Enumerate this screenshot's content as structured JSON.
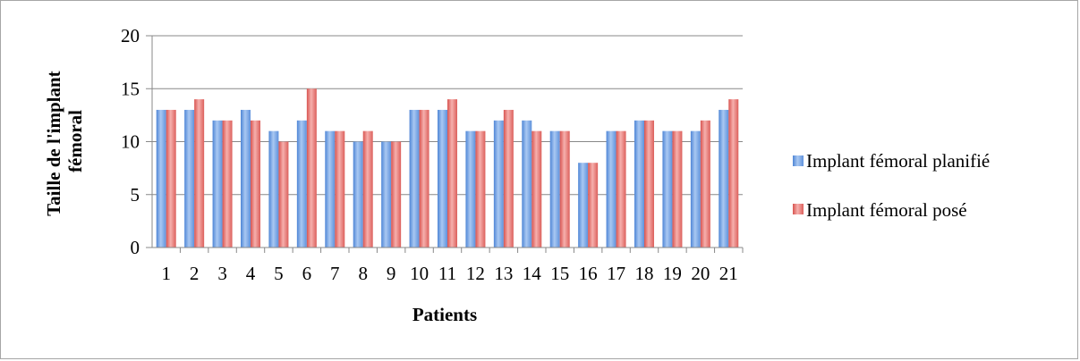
{
  "chart_data": {
    "type": "bar",
    "title": "",
    "xlabel": "Patients",
    "ylabel": "Taille de l'implant fémoral",
    "ylim": [
      0,
      20
    ],
    "yticks": [
      0,
      5,
      10,
      15,
      20
    ],
    "grid": true,
    "legend_position": "right",
    "categories": [
      "1",
      "2",
      "3",
      "4",
      "5",
      "6",
      "7",
      "8",
      "9",
      "10",
      "11",
      "12",
      "13",
      "14",
      "15",
      "16",
      "17",
      "18",
      "19",
      "20",
      "21"
    ],
    "series": [
      {
        "name": "Implant fémoral planifié",
        "color": "#6f9fe0",
        "values": [
          13,
          13,
          12,
          13,
          11,
          12,
          11,
          10,
          10,
          13,
          13,
          11,
          12,
          12,
          11,
          8,
          11,
          12,
          11,
          11,
          13
        ]
      },
      {
        "name": "Implant fémoral posé",
        "color": "#e0706d",
        "values": [
          13,
          14,
          12,
          12,
          10,
          15,
          11,
          11,
          10,
          13,
          14,
          11,
          13,
          11,
          11,
          8,
          11,
          12,
          11,
          12,
          14
        ]
      }
    ]
  }
}
